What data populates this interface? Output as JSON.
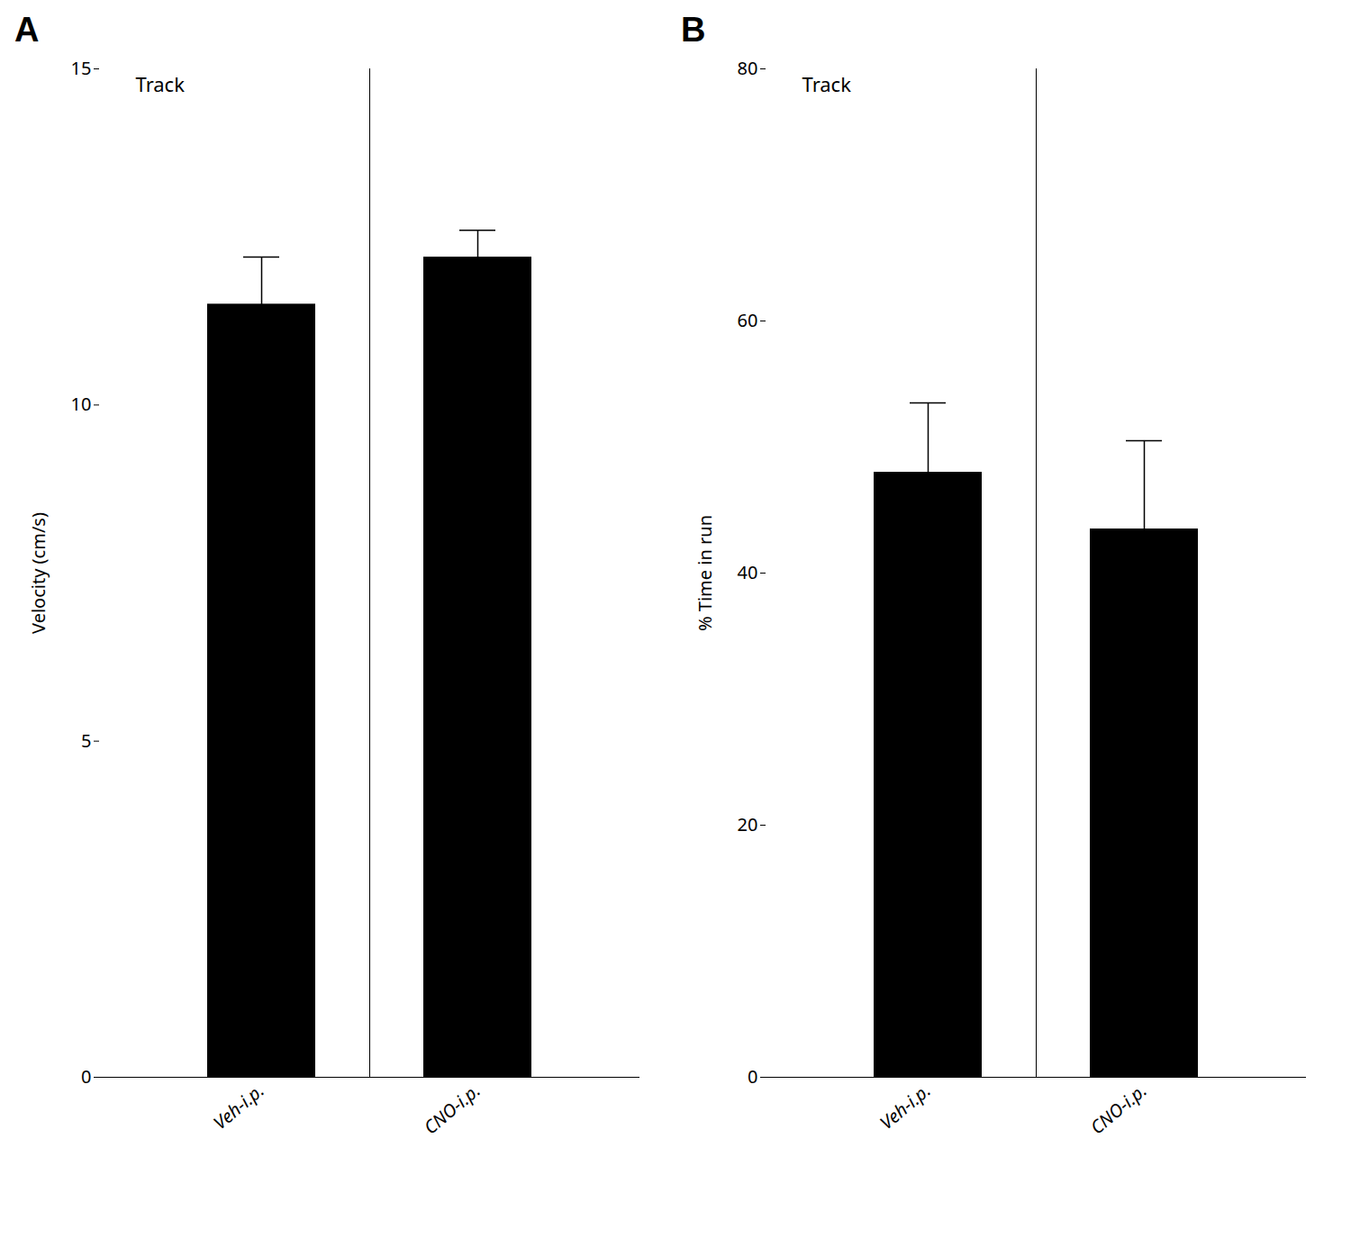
{
  "chart_data": [
    {
      "type": "bar",
      "title": "Track",
      "ylabel": "Velocity (cm/s)",
      "annotations": [
        "A"
      ],
      "categories": [
        "Veh-i.p.",
        "CNO-i.p."
      ],
      "values": [
        11.5,
        12.2
      ],
      "errors": [
        0.7,
        0.4
      ],
      "color": "#000000",
      "ylim": [
        0,
        15
      ],
      "yticks": [
        0,
        5,
        10,
        15
      ]
    },
    {
      "type": "bar",
      "title": "Track",
      "ylabel": "% Time in run",
      "annotations": [
        "B"
      ],
      "categories": [
        "Veh-i.p.",
        "CNO-i.p."
      ],
      "values": [
        48.0,
        43.5
      ],
      "errors": [
        5.5,
        7.0
      ],
      "color": "#000000",
      "ylim": [
        0,
        80
      ],
      "yticks": [
        0,
        20,
        40,
        60,
        80
      ]
    }
  ]
}
